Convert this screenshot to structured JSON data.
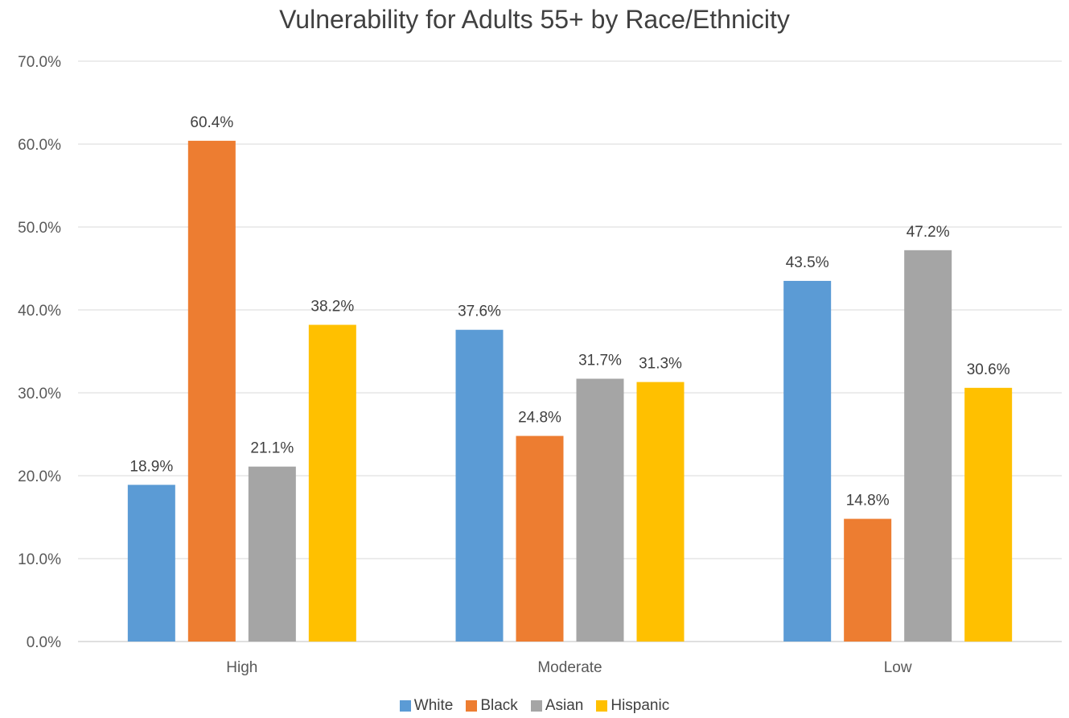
{
  "chart_data": {
    "type": "bar",
    "title": "Vulnerability for Adults 55+ by Race/Ethnicity",
    "xlabel": "",
    "ylabel": "",
    "categories": [
      "High",
      "Moderate",
      "Low"
    ],
    "series": [
      {
        "name": "White",
        "color": "#5B9BD5",
        "values": [
          18.9,
          37.6,
          43.5
        ],
        "labels": [
          "18.9%",
          "37.6%",
          "43.5%"
        ]
      },
      {
        "name": "Black",
        "color": "#ED7D31",
        "values": [
          60.4,
          24.8,
          14.8
        ],
        "labels": [
          "60.4%",
          "24.8%",
          "14.8%"
        ]
      },
      {
        "name": "Asian",
        "color": "#A5A5A5",
        "values": [
          21.1,
          31.7,
          47.2
        ],
        "labels": [
          "21.1%",
          "31.7%",
          "47.2%"
        ]
      },
      {
        "name": "Hispanic",
        "color": "#FFC000",
        "values": [
          38.2,
          31.3,
          30.6
        ],
        "labels": [
          "38.2%",
          "31.3%",
          "30.6%"
        ]
      }
    ],
    "ylim": [
      0,
      70
    ],
    "yticks": [
      0,
      10,
      20,
      30,
      40,
      50,
      60,
      70
    ],
    "ytick_labels": [
      "0.0%",
      "10.0%",
      "20.0%",
      "30.0%",
      "40.0%",
      "50.0%",
      "60.0%",
      "70.0%"
    ],
    "grid": true,
    "legend_position": "bottom"
  }
}
